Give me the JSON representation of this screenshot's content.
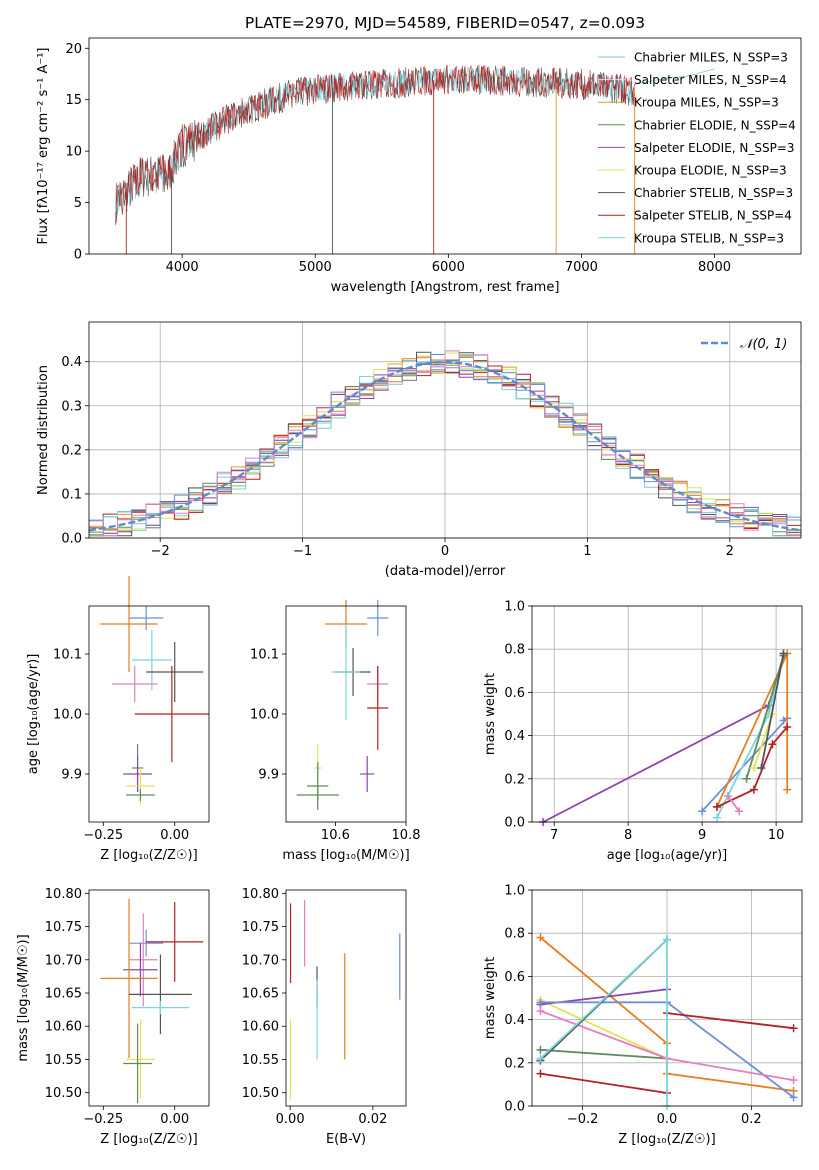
{
  "chart_data": [
    {
      "id": "spectrum",
      "type": "line",
      "title": "PLATE=2970, MJD=54589, FIBERID=0547, z=0.093",
      "xlabel": "wavelength [Angstrom, rest frame]",
      "ylabel": "Flux [fλ10⁻¹⁷ erg cm⁻² s⁻¹ A⁻¹]",
      "xlim": [
        3300,
        8650
      ],
      "ylim": [
        0,
        21
      ],
      "xticks": [
        4000,
        5000,
        6000,
        7000,
        8000
      ],
      "yticks": [
        0,
        5,
        10,
        15,
        20
      ],
      "grid": false,
      "legend_position": "top-right",
      "legend": [
        {
          "label": "Chabrier MILES, N_SSP=3",
          "color": "#7fc7d9"
        },
        {
          "label": "Salpeter MILES, N_SSP=4",
          "color": "#d8ddf2"
        },
        {
          "label": "Kroupa MILES, N_SSP=3",
          "color": "#d99a2b"
        },
        {
          "label": "Chabrier ELODIE, N_SSP=4",
          "color": "#5e8a5e"
        },
        {
          "label": "Salpeter ELODIE, N_SSP=3",
          "color": "#8e44ad"
        },
        {
          "label": "Kroupa ELODIE, N_SSP=3",
          "color": "#e3e35a"
        },
        {
          "label": "Chabrier STELIB, N_SSP=3",
          "color": "#555555"
        },
        {
          "label": "Salpeter STELIB, N_SSP=4",
          "color": "#b22222"
        },
        {
          "label": "Kroupa STELIB, N_SSP=3",
          "color": "#76d7de"
        }
      ],
      "continuum_x": [
        3500,
        3700,
        3900,
        4000,
        4200,
        4400,
        4600,
        4800,
        5000,
        5200,
        5500,
        6000,
        6500,
        7000,
        7200,
        7400
      ],
      "continuum_y": [
        5,
        7.5,
        7.8,
        10.5,
        12,
        13.5,
        14.5,
        15.5,
        16,
        16.3,
        16.5,
        17,
        16.8,
        16.5,
        16.2,
        15.8
      ],
      "drop_lines_x": [
        3580,
        3920,
        5130,
        5890,
        6810,
        7400
      ],
      "model_extension_x": [
        7400,
        7600,
        7800,
        8000
      ],
      "model_extension_y": [
        16.5,
        17,
        17.3,
        18
      ]
    },
    {
      "id": "residuals",
      "type": "step",
      "xlabel": "(data-model)/error",
      "ylabel": "Normed distribution",
      "xlim": [
        -2.5,
        2.5
      ],
      "ylim": [
        0,
        0.49
      ],
      "xticks": [
        -2,
        -1,
        0,
        1,
        2
      ],
      "yticks": [
        0.0,
        0.1,
        0.2,
        0.3,
        0.4
      ],
      "grid": true,
      "legend_position": "top-right",
      "gaussian_label": "𝒩(0, 1)",
      "gaussian_color": "#5b8bd0",
      "bins": 50,
      "series_colors": [
        "#7fc7d9",
        "#e67e22",
        "#d99a2b",
        "#5e8a5e",
        "#8e44ad",
        "#e3e35a",
        "#555555",
        "#b22222",
        "#76d7de",
        "#6c8fd6",
        "#e37fbf"
      ]
    },
    {
      "id": "age_vs_Z",
      "type": "errorbar",
      "xlabel": "Z [log₁₀(Z/Z☉)]",
      "ylabel": "age  [log₁₀(age/yr)]",
      "xlim": [
        -0.3,
        0.12
      ],
      "ylim": [
        9.82,
        10.18
      ],
      "xticks": [
        -0.25,
        0.0
      ],
      "yticks": [
        9.9,
        10.0,
        10.1
      ],
      "points": [
        {
          "x": -0.1,
          "y": 10.16,
          "xerr": 0.06,
          "yerr": 0.02,
          "color": "#6c8fd6"
        },
        {
          "x": -0.16,
          "y": 10.15,
          "xerr": 0.1,
          "yerr": 0.08,
          "color": "#e67e22"
        },
        {
          "x": -0.08,
          "y": 10.09,
          "xerr": 0.07,
          "yerr": 0.05,
          "color": "#76d7de"
        },
        {
          "x": 0.0,
          "y": 10.07,
          "xerr": 0.1,
          "yerr": 0.05,
          "color": "#555555"
        },
        {
          "x": -0.14,
          "y": 10.05,
          "xerr": 0.08,
          "yerr": 0.03,
          "color": "#e37fbf"
        },
        {
          "x": -0.01,
          "y": 10.0,
          "xerr": 0.13,
          "yerr": 0.08,
          "color": "#b22222"
        },
        {
          "x": -0.13,
          "y": 9.91,
          "xerr": 0.02,
          "yerr": 0.04,
          "color": "#5e8a5e"
        },
        {
          "x": -0.13,
          "y": 9.9,
          "xerr": 0.05,
          "yerr": 0.03,
          "color": "#8e44ad"
        },
        {
          "x": -0.12,
          "y": 9.88,
          "xerr": 0.05,
          "yerr": 0.03,
          "color": "#e3e35a"
        },
        {
          "x": -0.12,
          "y": 9.865,
          "xerr": 0.05,
          "yerr": 0.01,
          "color": "#5e8a5e"
        }
      ]
    },
    {
      "id": "age_vs_mass",
      "type": "errorbar",
      "xlabel": "mass [log₁₀(M/M☉)]",
      "xlim": [
        10.46,
        10.8
      ],
      "ylim": [
        9.82,
        10.18
      ],
      "xticks": [
        10.6,
        10.8
      ],
      "yticks": [
        9.9,
        10.0,
        10.1
      ],
      "points": [
        {
          "x": 10.72,
          "y": 10.16,
          "xerr": 0.03,
          "yerr": 0.03,
          "color": "#6c8fd6"
        },
        {
          "x": 10.63,
          "y": 10.15,
          "xerr": 0.06,
          "yerr": 0.04,
          "color": "#e67e22"
        },
        {
          "x": 10.65,
          "y": 10.07,
          "xerr": 0.05,
          "yerr": 0.04,
          "color": "#555555"
        },
        {
          "x": 10.72,
          "y": 10.05,
          "xerr": 0.03,
          "yerr": 0.03,
          "color": "#e37fbf"
        },
        {
          "x": 10.63,
          "y": 10.07,
          "xerr": 0.04,
          "yerr": 0.08,
          "color": "#76d7de"
        },
        {
          "x": 10.72,
          "y": 10.01,
          "xerr": 0.03,
          "yerr": 0.07,
          "color": "#b22222"
        },
        {
          "x": 10.55,
          "y": 9.91,
          "xerr": 0.01,
          "yerr": 0.04,
          "color": "#e3e35a"
        },
        {
          "x": 10.69,
          "y": 9.9,
          "xerr": 0.02,
          "yerr": 0.03,
          "color": "#8e44ad"
        },
        {
          "x": 10.55,
          "y": 9.88,
          "xerr": 0.03,
          "yerr": 0.04,
          "color": "#5e8a5e"
        },
        {
          "x": 10.55,
          "y": 9.865,
          "xerr": 0.06,
          "yerr": 0.01,
          "color": "#5e8a5e"
        }
      ]
    },
    {
      "id": "weight_vs_age",
      "type": "line",
      "xlabel": "age  [log₁₀(age/yr)]",
      "ylabel": "mass weight",
      "xlim": [
        6.7,
        10.35
      ],
      "ylim": [
        0,
        1.0
      ],
      "xticks": [
        7,
        8,
        9,
        10
      ],
      "yticks": [
        0.0,
        0.2,
        0.4,
        0.6,
        0.8,
        1.0
      ],
      "grid": true,
      "series": [
        {
          "color": "#8e44ad",
          "x": [
            6.85,
            9.9
          ],
          "y": [
            0.0,
            0.54
          ]
        },
        {
          "color": "#6c8fd6",
          "x": [
            9.0,
            10.15,
            10.1
          ],
          "y": [
            0.05,
            0.48,
            0.47
          ]
        },
        {
          "color": "#e67e22",
          "x": [
            9.2,
            10.15,
            10.15
          ],
          "y": [
            0.07,
            0.78,
            0.15
          ]
        },
        {
          "color": "#76d7de",
          "x": [
            9.2,
            9.9,
            10.1
          ],
          "y": [
            0.02,
            0.5,
            0.77
          ]
        },
        {
          "color": "#5e8a5e",
          "x": [
            9.6,
            10.1
          ],
          "y": [
            0.2,
            0.77
          ]
        },
        {
          "color": "#e3e35a",
          "x": [
            9.7,
            9.95
          ],
          "y": [
            0.25,
            0.5
          ]
        },
        {
          "color": "#b22222",
          "x": [
            9.2,
            9.7,
            9.95,
            10.15
          ],
          "y": [
            0.07,
            0.15,
            0.36,
            0.44
          ]
        },
        {
          "color": "#e37fbf",
          "x": [
            9.35,
            9.5
          ],
          "y": [
            0.12,
            0.05
          ]
        },
        {
          "color": "#555555",
          "x": [
            9.8,
            10.1
          ],
          "y": [
            0.25,
            0.78
          ]
        }
      ]
    },
    {
      "id": "mass_vs_Z",
      "type": "errorbar",
      "xlabel": "Z [log₁₀(Z/Z☉)]",
      "ylabel": "mass [log₁₀(M/M☉)]",
      "xlim": [
        -0.3,
        0.12
      ],
      "ylim": [
        10.48,
        10.805
      ],
      "xticks": [
        -0.25,
        0.0
      ],
      "yticks": [
        10.5,
        10.55,
        10.6,
        10.65,
        10.7,
        10.75,
        10.8
      ],
      "points": [
        {
          "x": -0.1,
          "y": 10.725,
          "xerr": 0.06,
          "yerr": 0.02,
          "color": "#6c8fd6"
        },
        {
          "x": 0.0,
          "y": 10.727,
          "xerr": 0.1,
          "yerr": 0.06,
          "color": "#b22222"
        },
        {
          "x": -0.11,
          "y": 10.7,
          "xerr": 0.05,
          "yerr": 0.07,
          "color": "#e37fbf"
        },
        {
          "x": -0.12,
          "y": 10.685,
          "xerr": 0.06,
          "yerr": 0.04,
          "color": "#8e44ad"
        },
        {
          "x": -0.16,
          "y": 10.672,
          "xerr": 0.1,
          "yerr": 0.12,
          "color": "#e67e22"
        },
        {
          "x": -0.05,
          "y": 10.648,
          "xerr": 0.11,
          "yerr": 0.06,
          "color": "#555555"
        },
        {
          "x": -0.05,
          "y": 10.628,
          "xerr": 0.1,
          "yerr": 0.01,
          "color": "#76d7de"
        },
        {
          "x": -0.12,
          "y": 10.55,
          "xerr": 0.05,
          "yerr": 0.06,
          "color": "#e3e35a"
        },
        {
          "x": -0.13,
          "y": 10.544,
          "xerr": 0.05,
          "yerr": 0.06,
          "color": "#5e8a5e"
        }
      ]
    },
    {
      "id": "mass_vs_EBV",
      "type": "errorbar",
      "xlabel": "E(B-V)",
      "xlim": [
        -0.001,
        0.028
      ],
      "ylim": [
        10.48,
        10.805
      ],
      "xticks": [
        0.0,
        0.02
      ],
      "yticks": [
        10.5,
        10.55,
        10.6,
        10.65,
        10.7,
        10.75,
        10.8
      ],
      "points": [
        {
          "x": 0.0001,
          "y": 10.725,
          "xerr": 0,
          "yerr": 0.06,
          "color": "#b22222"
        },
        {
          "x": 0.0001,
          "y": 10.55,
          "xerr": 0,
          "yerr": 0.06,
          "color": "#e3e35a"
        },
        {
          "x": 0.0035,
          "y": 10.74,
          "xerr": 0,
          "yerr": 0.05,
          "color": "#e37fbf"
        },
        {
          "x": 0.0065,
          "y": 10.66,
          "xerr": 0,
          "yerr": 0.03,
          "color": "#555555"
        },
        {
          "x": 0.0065,
          "y": 10.61,
          "xerr": 0,
          "yerr": 0.06,
          "color": "#76d7de"
        },
        {
          "x": 0.0132,
          "y": 10.63,
          "xerr": 0,
          "yerr": 0.08,
          "color": "#e67e22"
        },
        {
          "x": 0.0265,
          "y": 10.69,
          "xerr": 0,
          "yerr": 0.05,
          "color": "#6c8fd6"
        }
      ]
    },
    {
      "id": "weight_vs_Z",
      "type": "line",
      "xlabel": "Z [log₁₀(Z/Z☉)]",
      "ylabel": "mass weight",
      "xlim": [
        -0.32,
        0.32
      ],
      "ylim": [
        0,
        1.0
      ],
      "xticks": [
        -0.2,
        0.0,
        0.2
      ],
      "yticks": [
        0.0,
        0.2,
        0.4,
        0.6,
        0.8,
        1.0
      ],
      "grid": true,
      "series": [
        {
          "color": "#e67e22",
          "x": [
            -0.3,
            0.0,
            0.0,
            0.3
          ],
          "y": [
            0.78,
            0.29,
            0.15,
            0.07
          ]
        },
        {
          "color": "#5e8a5e",
          "x": [
            -0.3,
            0.0
          ],
          "y": [
            0.26,
            0.22
          ]
        },
        {
          "color": "#e3e35a",
          "x": [
            -0.3,
            0.0
          ],
          "y": [
            0.49,
            0.22
          ]
        },
        {
          "color": "#8e44ad",
          "x": [
            -0.3,
            0.0
          ],
          "y": [
            0.47,
            0.54
          ]
        },
        {
          "color": "#6c8fd6",
          "x": [
            -0.3,
            0.0,
            0.3
          ],
          "y": [
            0.48,
            0.48,
            0.04
          ]
        },
        {
          "color": "#e37fbf",
          "x": [
            -0.3,
            0.0,
            0.3
          ],
          "y": [
            0.44,
            0.22,
            0.12
          ]
        },
        {
          "color": "#b22222",
          "x": [
            -0.3,
            0.0
          ],
          "y": [
            0.15,
            0.06
          ]
        },
        {
          "color": "#b22222",
          "x": [
            0.0,
            0.3
          ],
          "y": [
            0.43,
            0.36
          ]
        },
        {
          "color": "#555555",
          "x": [
            -0.3,
            0.0
          ],
          "y": [
            0.21,
            0.77
          ]
        },
        {
          "color": "#76d7de",
          "x": [
            -0.3,
            0.0,
            0.0
          ],
          "y": [
            0.22,
            0.77,
            0.0
          ]
        }
      ]
    }
  ]
}
